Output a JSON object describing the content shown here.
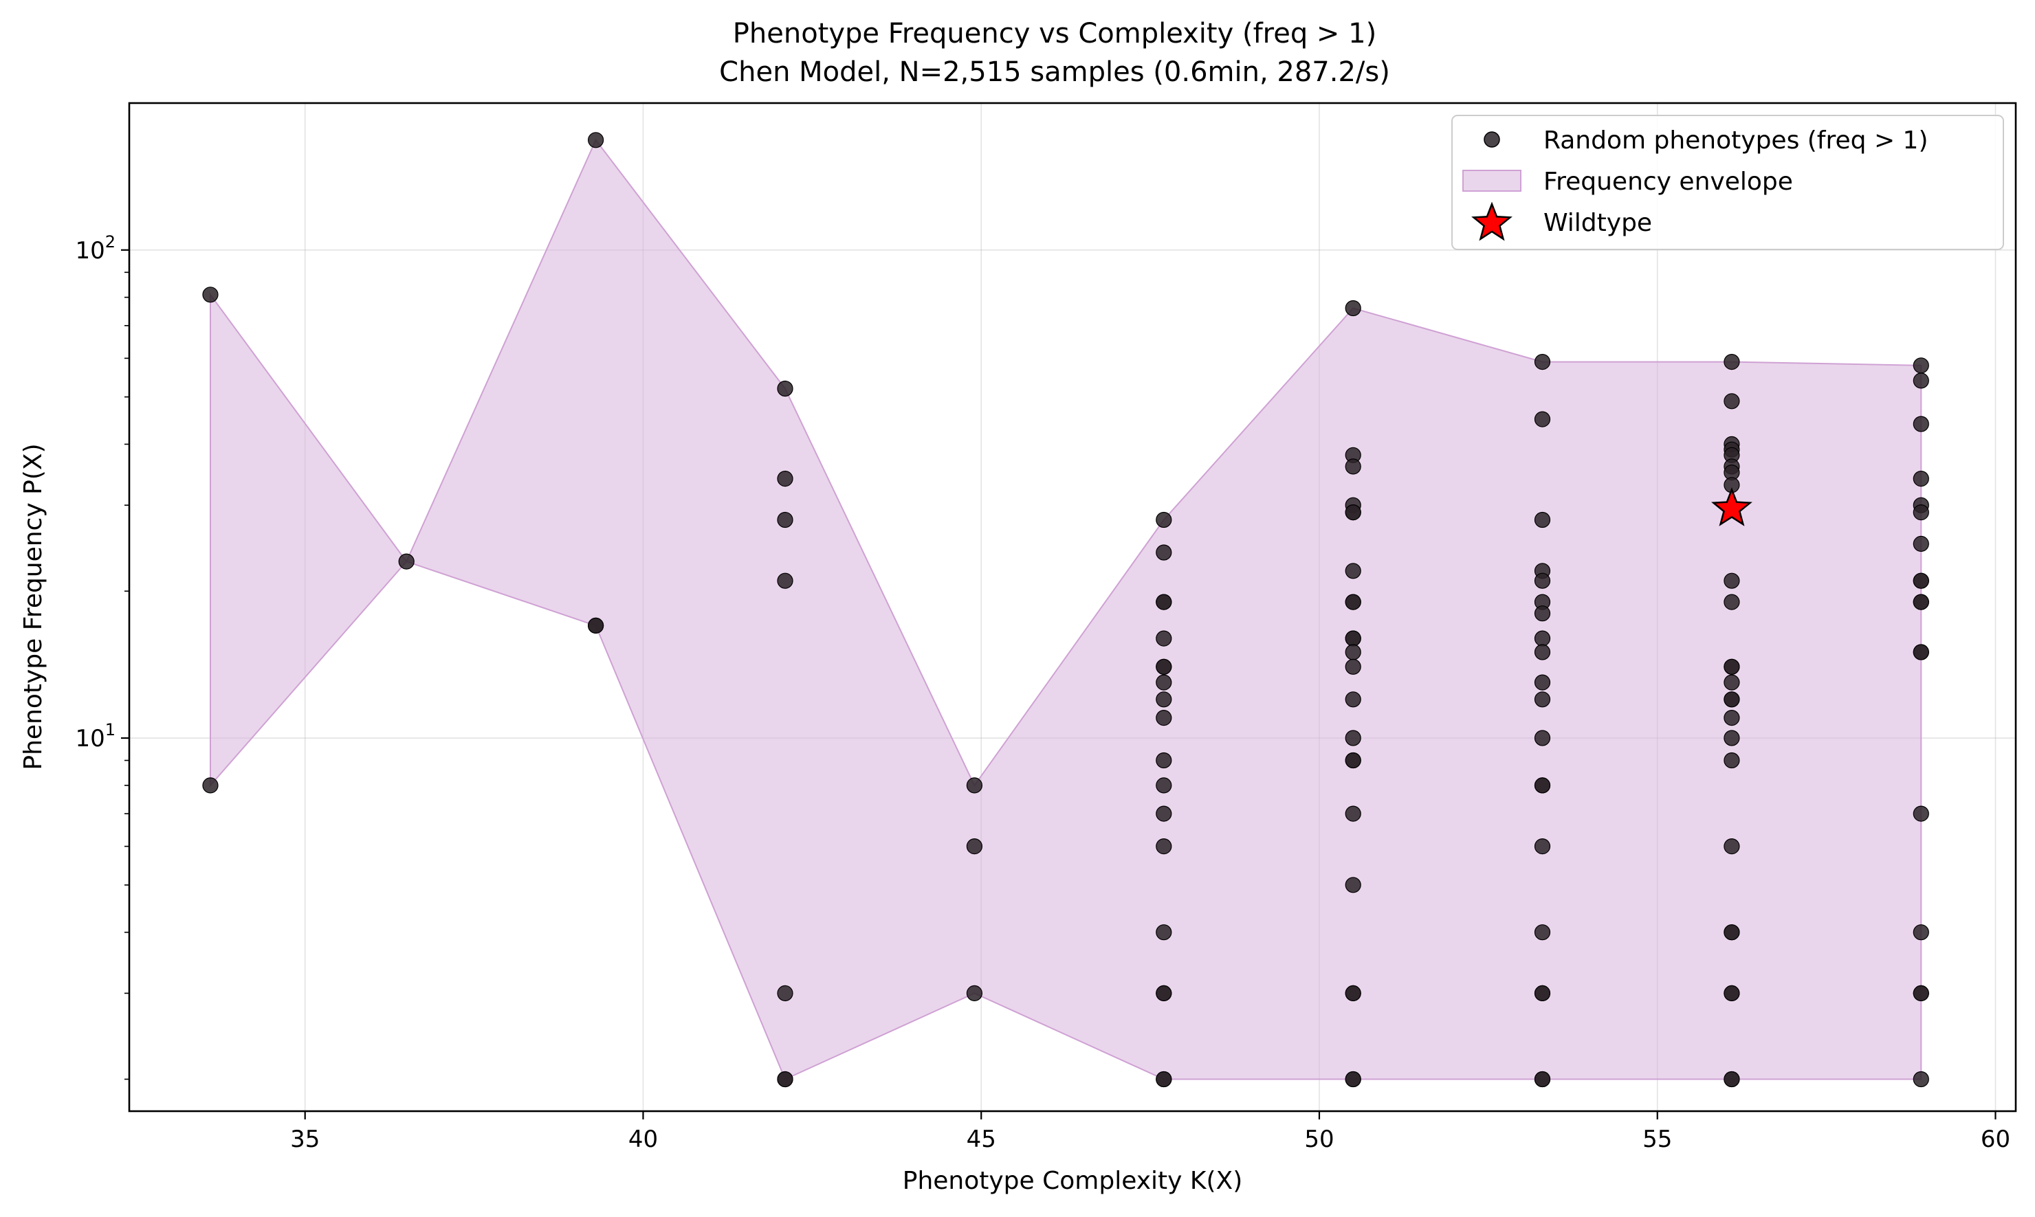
{
  "chart_data": {
    "type": "scatter",
    "title": "Phenotype Frequency vs Complexity (freq > 1)",
    "subtitle": "Chen Model, N=2,515 samples (0.6min, 287.2/s)",
    "xlabel": "Phenotype Complexity K(X)",
    "ylabel": "Phenotype Frequency P(X)",
    "xlim": [
      32.4,
      60.3
    ],
    "ylim": [
      1.72,
      200
    ],
    "yscale": "log",
    "grid": true,
    "legend_position": "top-right",
    "xticks": [
      35,
      40,
      45,
      50,
      55,
      60
    ],
    "yticks": [
      {
        "value": 10,
        "base": "10",
        "exp": "1"
      },
      {
        "value": 100,
        "base": "10",
        "exp": "2"
      }
    ],
    "colors": {
      "points": "#2b2328",
      "envelope_fill": "#d8b5dc",
      "envelope_line": "#cfa1d4",
      "wildtype": "#ff0000"
    },
    "series": [
      {
        "name": "Random phenotypes (freq > 1)",
        "points": [
          [
            33.6,
            81
          ],
          [
            33.6,
            8
          ],
          [
            36.5,
            23
          ],
          [
            39.3,
            168
          ],
          [
            39.3,
            17
          ],
          [
            39.3,
            17
          ],
          [
            42.1,
            52
          ],
          [
            42.1,
            34
          ],
          [
            42.1,
            28
          ],
          [
            42.1,
            21
          ],
          [
            42.1,
            3
          ],
          [
            42.1,
            2
          ],
          [
            42.1,
            2
          ],
          [
            44.9,
            8
          ],
          [
            44.9,
            6
          ],
          [
            44.9,
            3
          ],
          [
            47.7,
            28
          ],
          [
            47.7,
            24
          ],
          [
            47.7,
            19
          ],
          [
            47.7,
            19
          ],
          [
            47.7,
            16
          ],
          [
            47.7,
            14
          ],
          [
            47.7,
            14
          ],
          [
            47.7,
            13
          ],
          [
            47.7,
            12
          ],
          [
            47.7,
            11
          ],
          [
            47.7,
            9
          ],
          [
            47.7,
            8
          ],
          [
            47.7,
            7
          ],
          [
            47.7,
            6
          ],
          [
            47.7,
            4
          ],
          [
            47.7,
            3
          ],
          [
            47.7,
            3
          ],
          [
            47.7,
            2
          ],
          [
            47.7,
            2
          ],
          [
            50.5,
            76
          ],
          [
            50.5,
            38
          ],
          [
            50.5,
            36
          ],
          [
            50.5,
            30
          ],
          [
            50.5,
            29
          ],
          [
            50.5,
            29
          ],
          [
            50.5,
            22
          ],
          [
            50.5,
            19
          ],
          [
            50.5,
            19
          ],
          [
            50.5,
            16
          ],
          [
            50.5,
            16
          ],
          [
            50.5,
            15
          ],
          [
            50.5,
            14
          ],
          [
            50.5,
            12
          ],
          [
            50.5,
            10
          ],
          [
            50.5,
            9
          ],
          [
            50.5,
            9
          ],
          [
            50.5,
            7
          ],
          [
            50.5,
            5
          ],
          [
            50.5,
            3
          ],
          [
            50.5,
            3
          ],
          [
            50.5,
            2
          ],
          [
            50.5,
            2
          ],
          [
            53.3,
            59
          ],
          [
            53.3,
            45
          ],
          [
            53.3,
            28
          ],
          [
            53.3,
            22
          ],
          [
            53.3,
            21
          ],
          [
            53.3,
            19
          ],
          [
            53.3,
            18
          ],
          [
            53.3,
            16
          ],
          [
            53.3,
            15
          ],
          [
            53.3,
            13
          ],
          [
            53.3,
            12
          ],
          [
            53.3,
            10
          ],
          [
            53.3,
            8
          ],
          [
            53.3,
            8
          ],
          [
            53.3,
            6
          ],
          [
            53.3,
            4
          ],
          [
            53.3,
            3
          ],
          [
            53.3,
            3
          ],
          [
            53.3,
            2
          ],
          [
            53.3,
            2
          ],
          [
            56.1,
            59
          ],
          [
            56.1,
            49
          ],
          [
            56.1,
            40
          ],
          [
            56.1,
            39
          ],
          [
            56.1,
            38
          ],
          [
            56.1,
            36
          ],
          [
            56.1,
            35
          ],
          [
            56.1,
            33
          ],
          [
            56.1,
            21
          ],
          [
            56.1,
            19
          ],
          [
            56.1,
            14
          ],
          [
            56.1,
            14
          ],
          [
            56.1,
            13
          ],
          [
            56.1,
            12
          ],
          [
            56.1,
            12
          ],
          [
            56.1,
            11
          ],
          [
            56.1,
            10
          ],
          [
            56.1,
            9
          ],
          [
            56.1,
            6
          ],
          [
            56.1,
            4
          ],
          [
            56.1,
            4
          ],
          [
            56.1,
            3
          ],
          [
            56.1,
            3
          ],
          [
            56.1,
            2
          ],
          [
            56.1,
            2
          ],
          [
            58.9,
            58
          ],
          [
            58.9,
            54
          ],
          [
            58.9,
            44
          ],
          [
            58.9,
            34
          ],
          [
            58.9,
            30
          ],
          [
            58.9,
            29
          ],
          [
            58.9,
            25
          ],
          [
            58.9,
            21
          ],
          [
            58.9,
            21
          ],
          [
            58.9,
            19
          ],
          [
            58.9,
            19
          ],
          [
            58.9,
            15
          ],
          [
            58.9,
            15
          ],
          [
            58.9,
            7
          ],
          [
            58.9,
            4
          ],
          [
            58.9,
            3
          ],
          [
            58.9,
            3
          ],
          [
            58.9,
            2
          ]
        ]
      },
      {
        "name": "Frequency envelope",
        "upper": [
          [
            33.6,
            81
          ],
          [
            36.5,
            23
          ],
          [
            39.3,
            168
          ],
          [
            42.1,
            52
          ],
          [
            44.9,
            8
          ],
          [
            47.7,
            28
          ],
          [
            50.5,
            76
          ],
          [
            53.3,
            59
          ],
          [
            56.1,
            59
          ],
          [
            58.9,
            58
          ]
        ],
        "lower": [
          [
            33.6,
            8
          ],
          [
            36.5,
            23
          ],
          [
            39.3,
            17
          ],
          [
            42.1,
            2
          ],
          [
            44.9,
            3
          ],
          [
            47.7,
            2
          ],
          [
            50.5,
            2
          ],
          [
            53.3,
            2
          ],
          [
            56.1,
            2
          ],
          [
            58.9,
            2
          ]
        ]
      },
      {
        "name": "Wildtype",
        "points": [
          [
            56.1,
            29.5
          ]
        ]
      }
    ]
  }
}
